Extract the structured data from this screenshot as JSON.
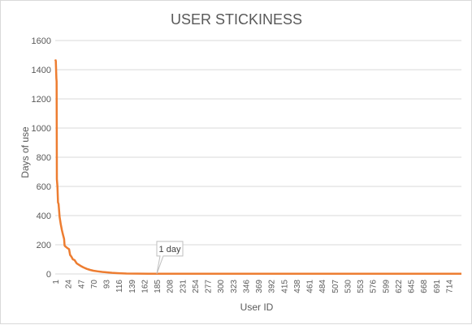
{
  "chart_data": {
    "type": "line",
    "title": "USER STICKINESS",
    "xlabel": "User ID",
    "ylabel": "Days of use",
    "ylim": [
      0,
      1600
    ],
    "yticks": [
      0,
      200,
      400,
      600,
      800,
      1000,
      1200,
      1400,
      1600
    ],
    "xlim": [
      1,
      737
    ],
    "xticks": [
      1,
      24,
      47,
      70,
      93,
      116,
      139,
      162,
      185,
      208,
      231,
      254,
      277,
      300,
      323,
      346,
      369,
      392,
      415,
      438,
      461,
      484,
      507,
      530,
      553,
      576,
      599,
      622,
      645,
      668,
      691,
      714
    ],
    "grid": true,
    "legend": "none",
    "color": "#ed7d31",
    "series": [
      {
        "x": [
          1,
          2,
          3,
          3.5,
          4,
          5,
          6,
          7,
          9,
          11,
          13,
          15,
          17,
          18,
          19,
          22,
          24,
          26,
          28,
          30,
          33,
          36,
          40,
          43,
          47,
          52,
          58,
          64,
          70,
          78,
          86,
          94,
          104,
          116,
          130,
          150,
          170,
          185,
          230,
          300,
          400,
          500,
          600,
          700,
          737
        ],
        "y": [
          1470,
          1460,
          1340,
          1320,
          650,
          600,
          490,
          480,
          390,
          340,
          300,
          270,
          240,
          195,
          190,
          180,
          175,
          170,
          130,
          120,
          100,
          95,
          72,
          65,
          55,
          45,
          35,
          28,
          22,
          18,
          14,
          11,
          8,
          5,
          3,
          2,
          1,
          1,
          1,
          1,
          1,
          1,
          1,
          1,
          1
        ]
      }
    ],
    "annotations": [
      {
        "text": "1 day",
        "x": 185,
        "y": 1
      }
    ]
  }
}
